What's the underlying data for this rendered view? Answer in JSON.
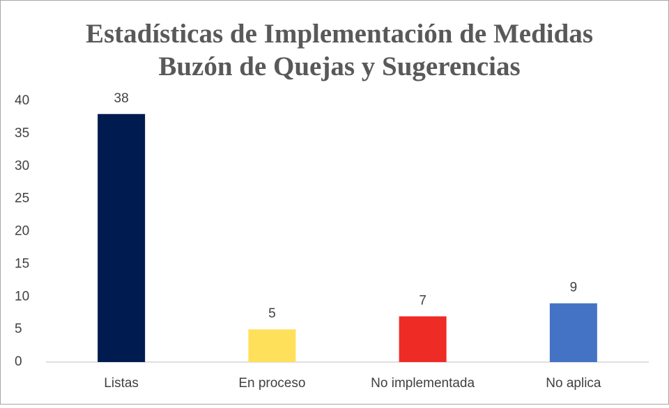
{
  "chart_data": {
    "type": "bar",
    "title": [
      "Estadísticas de Implementación de Medidas",
      "Buzón de Quejas y Sugerencias"
    ],
    "categories": [
      "Listas",
      "En proceso",
      "No implementada",
      "No aplica"
    ],
    "values": [
      38,
      5,
      7,
      9
    ],
    "colors": [
      "#001b4f",
      "#ffe05a",
      "#ee2b24",
      "#4472c4"
    ],
    "ylim": [
      0,
      40
    ],
    "yticks": [
      0,
      5,
      10,
      15,
      20,
      25,
      30,
      35,
      40
    ],
    "grid": false,
    "data_labels": true
  }
}
